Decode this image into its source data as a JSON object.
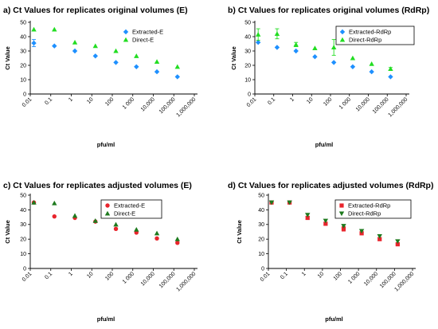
{
  "colors": {
    "extracted": "#1E90FF",
    "direct": "#22DD22",
    "extracted_adj": "#E8242C",
    "direct_adj": "#1E7A1E"
  },
  "chart_data": [
    {
      "type": "scatter",
      "title": "a) Ct Values for replicates original volumes (E)",
      "xlabel": "pfu/ml",
      "ylabel": "Ct Value",
      "xscale": "log",
      "xlim": [
        0.01,
        1000000
      ],
      "ylim": [
        0,
        50
      ],
      "yticks": [
        0,
        10,
        20,
        30,
        40,
        50
      ],
      "xtick_labels": [
        "0.01",
        "0.1",
        "1",
        "10",
        "100",
        "1 000",
        "10,000",
        "100,000",
        "1,000,000"
      ],
      "legend_position": "top-right",
      "legend_box": false,
      "series": [
        {
          "name": "Extracted-E",
          "marker": "diamond",
          "color": "#1E90FF",
          "x": [
            0.015,
            0.15,
            1.5,
            15,
            150,
            1500,
            15000,
            150000
          ],
          "y": [
            35.5,
            33.5,
            30,
            26.5,
            22,
            19,
            15.5,
            12
          ],
          "err": [
            2.5,
            0,
            0,
            0,
            0,
            0,
            0,
            0
          ]
        },
        {
          "name": "Direct-E",
          "marker": "triangle-up",
          "color": "#22DD22",
          "x": [
            0.015,
            0.15,
            1.5,
            15,
            150,
            1500,
            15000,
            150000
          ],
          "y": [
            45,
            45,
            36,
            33.5,
            30,
            26.5,
            22.5,
            19
          ],
          "err": [
            0,
            0,
            0,
            0,
            0,
            0,
            0,
            0
          ]
        }
      ]
    },
    {
      "type": "scatter",
      "title": "b) Ct Values for replicates original volumes (RdRp)",
      "xlabel": "pfu/ml",
      "ylabel": "Ct Value",
      "xscale": "log",
      "xlim": [
        0.01,
        1000000
      ],
      "ylim": [
        0,
        50
      ],
      "yticks": [
        0,
        10,
        20,
        30,
        40,
        50
      ],
      "xtick_labels": [
        "0.01",
        "0.1",
        "1",
        "10",
        "100",
        "1 000",
        "10,000",
        "100,000",
        "1,000,000"
      ],
      "legend_position": "top-right",
      "legend_box": true,
      "series": [
        {
          "name": "Extracted-RdRp",
          "marker": "diamond",
          "color": "#1E90FF",
          "x": [
            0.015,
            0.15,
            1.5,
            15,
            150,
            1500,
            15000,
            150000
          ],
          "y": [
            36,
            32.5,
            30,
            26,
            22,
            19,
            15.5,
            12
          ],
          "err": [
            0,
            0,
            0,
            0,
            0,
            0,
            0,
            0
          ]
        },
        {
          "name": "Direct-RdRp",
          "marker": "triangle-up",
          "color": "#22DD22",
          "x": [
            0.015,
            0.15,
            1.5,
            15,
            150,
            1500,
            15000,
            150000
          ],
          "y": [
            41.5,
            42,
            34.5,
            32,
            32.5,
            25,
            21,
            17.5
          ],
          "err": [
            4,
            3.5,
            1.5,
            0,
            5.5,
            0,
            0,
            1
          ]
        }
      ]
    },
    {
      "type": "scatter",
      "title": "c) Ct Values for replicates adjusted volumes (E)",
      "xlabel": "pfu/ml",
      "ylabel": "Ct Value",
      "xscale": "log",
      "xlim": [
        0.01,
        1000000
      ],
      "ylim": [
        0,
        50
      ],
      "yticks": [
        0,
        10,
        20,
        30,
        40,
        50
      ],
      "xtick_labels": [
        "0.01",
        "0.1",
        "1",
        "10",
        "100",
        "1 000",
        "10,000",
        "100,000",
        "1,000,000"
      ],
      "legend_position": "top-right",
      "legend_box": true,
      "series": [
        {
          "name": "Extracted-E",
          "marker": "circle",
          "color": "#E8242C",
          "x": [
            0.015,
            0.15,
            1.5,
            15,
            150,
            1500,
            15000,
            150000
          ],
          "y": [
            45,
            35.5,
            34.5,
            32,
            27,
            24.5,
            20.5,
            17.5
          ],
          "err": [
            0,
            0,
            0,
            0,
            0,
            0,
            0,
            0
          ]
        },
        {
          "name": "Direct-E",
          "marker": "triangle-up",
          "color": "#1E7A1E",
          "x": [
            0.015,
            0.15,
            1.5,
            15,
            150,
            1500,
            15000,
            150000
          ],
          "y": [
            45,
            44.5,
            36,
            32.5,
            30,
            26.5,
            24,
            20
          ],
          "err": [
            0,
            0,
            0,
            0,
            0,
            0,
            0,
            0
          ]
        }
      ]
    },
    {
      "type": "scatter",
      "title": "d) Ct Values for replicates adjusted volumes (RdRp)",
      "xlabel": "pfu/ml",
      "ylabel": "Ct Value",
      "xscale": "log",
      "xlim": [
        0.01,
        1000000
      ],
      "ylim": [
        0,
        50
      ],
      "yticks": [
        0,
        10,
        20,
        30,
        40,
        50
      ],
      "xtick_labels": [
        "0.01",
        "0.1",
        "1",
        "10",
        "100",
        "1 000",
        "10,000",
        "100,000",
        "1,000,000"
      ],
      "legend_position": "top-right",
      "legend_box": true,
      "series": [
        {
          "name": "Extracted-RdRp",
          "marker": "square",
          "color": "#E8242C",
          "x": [
            0.015,
            0.15,
            1.5,
            15,
            150,
            1500,
            15000,
            150000
          ],
          "y": [
            45,
            45,
            34.5,
            30.5,
            27,
            24,
            20,
            16.5
          ],
          "err": [
            0,
            0,
            1,
            1,
            1.5,
            1,
            1,
            0.5
          ]
        },
        {
          "name": "Direct-RdRp",
          "marker": "triangle-down",
          "color": "#1E7A1E",
          "x": [
            0.015,
            0.15,
            1.5,
            15,
            150,
            1500,
            15000,
            150000
          ],
          "y": [
            45,
            45,
            36.5,
            32.5,
            29,
            25.5,
            22,
            18.5
          ],
          "err": [
            0,
            0,
            0,
            0,
            0,
            0,
            0,
            0
          ]
        }
      ]
    }
  ]
}
